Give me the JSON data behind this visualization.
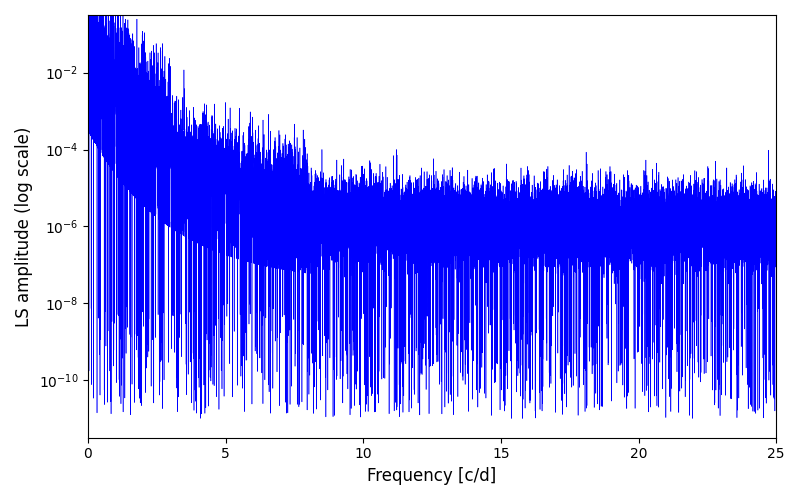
{
  "title": "",
  "xlabel": "Frequency [c/d]",
  "ylabel": "LS amplitude (log scale)",
  "xlim": [
    0,
    25
  ],
  "ylim_log_min": -11.5,
  "ylim_log_max": -0.5,
  "line_color": "#0000FF",
  "line_width": 0.4,
  "figsize": [
    8.0,
    5.0
  ],
  "dpi": 100,
  "seed": 12345,
  "n_points": 30000,
  "freq_max": 25.0,
  "background_color": "#ffffff",
  "noise_floor_log": -6.0,
  "peak_log": -2.0,
  "decay_scale": 3.0
}
